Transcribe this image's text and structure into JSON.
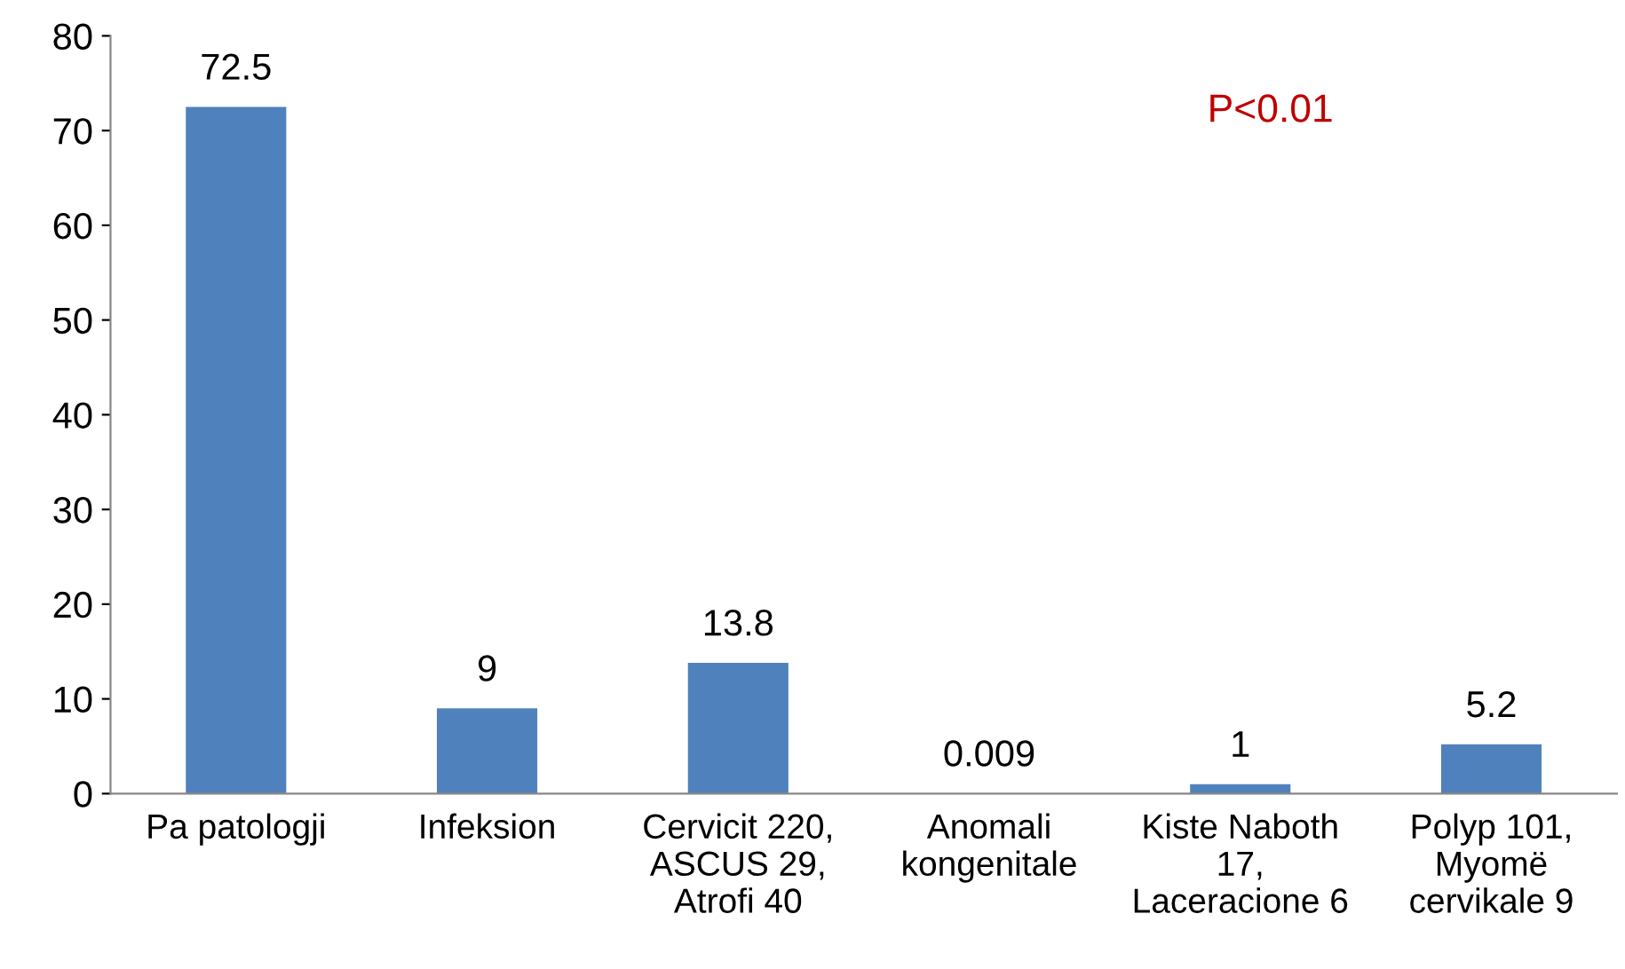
{
  "chart_data": {
    "type": "bar",
    "categories": [
      "Pa patologji",
      "Infeksion",
      "Cervicit 220,\nASCUS 29,\nAtrofi 40",
      "Anomali\nkongenitale",
      "Kiste Naboth\n17,\nLaceracione 6",
      "Polyp 101,\nMyomë\ncervikale 9"
    ],
    "values": [
      72.5,
      9,
      13.8,
      0.009,
      1,
      5.2
    ],
    "color": "#4f81bd",
    "ylim": [
      0,
      80
    ],
    "yticks": [
      0,
      10,
      20,
      30,
      40,
      50,
      60,
      70,
      80
    ],
    "grid": false,
    "data_labels": true,
    "annotations": [
      "P<0.01"
    ]
  }
}
